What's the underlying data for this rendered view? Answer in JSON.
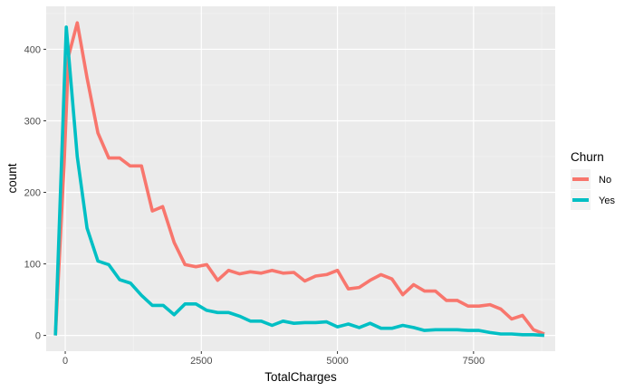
{
  "chart_data": {
    "type": "line",
    "xlabel": "TotalCharges",
    "ylabel": "count",
    "xlim": [
      -350,
      9000
    ],
    "ylim": [
      -22,
      460
    ],
    "x_ticks": [
      0,
      2500,
      5000,
      7500
    ],
    "x_tick_labels": [
      "0",
      "2500",
      "5000",
      "7500"
    ],
    "y_ticks": [
      0,
      100,
      200,
      300,
      400
    ],
    "y_tick_labels": [
      "0",
      "100",
      "200",
      "300",
      "400"
    ],
    "grid": true,
    "legend": {
      "title": "Churn",
      "position": "right"
    },
    "series": [
      {
        "name": "No",
        "color": "#F8766D",
        "points": [
          [
            -180,
            0
          ],
          [
            -20,
            240
          ],
          [
            60,
            390
          ],
          [
            220,
            437
          ],
          [
            400,
            360
          ],
          [
            600,
            283
          ],
          [
            800,
            248
          ],
          [
            1000,
            248
          ],
          [
            1190,
            237
          ],
          [
            1400,
            237
          ],
          [
            1600,
            174
          ],
          [
            1790,
            180
          ],
          [
            2000,
            130
          ],
          [
            2200,
            99
          ],
          [
            2400,
            96
          ],
          [
            2600,
            99
          ],
          [
            2800,
            77
          ],
          [
            3000,
            91
          ],
          [
            3200,
            86
          ],
          [
            3400,
            89
          ],
          [
            3600,
            87
          ],
          [
            3800,
            91
          ],
          [
            4000,
            87
          ],
          [
            4200,
            88
          ],
          [
            4400,
            76
          ],
          [
            4600,
            83
          ],
          [
            4800,
            85
          ],
          [
            5000,
            91
          ],
          [
            5200,
            65
          ],
          [
            5400,
            67
          ],
          [
            5600,
            77
          ],
          [
            5800,
            85
          ],
          [
            6000,
            79
          ],
          [
            6200,
            57
          ],
          [
            6400,
            71
          ],
          [
            6600,
            62
          ],
          [
            6800,
            62
          ],
          [
            7000,
            49
          ],
          [
            7200,
            49
          ],
          [
            7400,
            41
          ],
          [
            7600,
            41
          ],
          [
            7800,
            43
          ],
          [
            8000,
            37
          ],
          [
            8200,
            23
          ],
          [
            8400,
            28
          ],
          [
            8600,
            8
          ],
          [
            8800,
            2
          ]
        ]
      },
      {
        "name": "Yes",
        "color": "#00BFC4",
        "points": [
          [
            -180,
            0
          ],
          [
            20,
            431
          ],
          [
            220,
            250
          ],
          [
            400,
            150
          ],
          [
            600,
            104
          ],
          [
            800,
            99
          ],
          [
            1000,
            78
          ],
          [
            1200,
            73
          ],
          [
            1400,
            56
          ],
          [
            1600,
            42
          ],
          [
            1800,
            42
          ],
          [
            2000,
            29
          ],
          [
            2200,
            44
          ],
          [
            2400,
            44
          ],
          [
            2600,
            35
          ],
          [
            2800,
            32
          ],
          [
            3000,
            32
          ],
          [
            3200,
            27
          ],
          [
            3400,
            20
          ],
          [
            3600,
            20
          ],
          [
            3800,
            14
          ],
          [
            4000,
            20
          ],
          [
            4200,
            17
          ],
          [
            4400,
            18
          ],
          [
            4600,
            18
          ],
          [
            4800,
            19
          ],
          [
            5000,
            12
          ],
          [
            5200,
            16
          ],
          [
            5400,
            11
          ],
          [
            5600,
            17
          ],
          [
            5800,
            10
          ],
          [
            6000,
            10
          ],
          [
            6200,
            14
          ],
          [
            6400,
            11
          ],
          [
            6600,
            7
          ],
          [
            6800,
            8
          ],
          [
            7000,
            8
          ],
          [
            7200,
            8
          ],
          [
            7400,
            7
          ],
          [
            7600,
            7
          ],
          [
            7800,
            4
          ],
          [
            8000,
            2
          ],
          [
            8200,
            2
          ],
          [
            8400,
            1
          ],
          [
            8600,
            1
          ],
          [
            8800,
            0
          ]
        ]
      }
    ]
  }
}
